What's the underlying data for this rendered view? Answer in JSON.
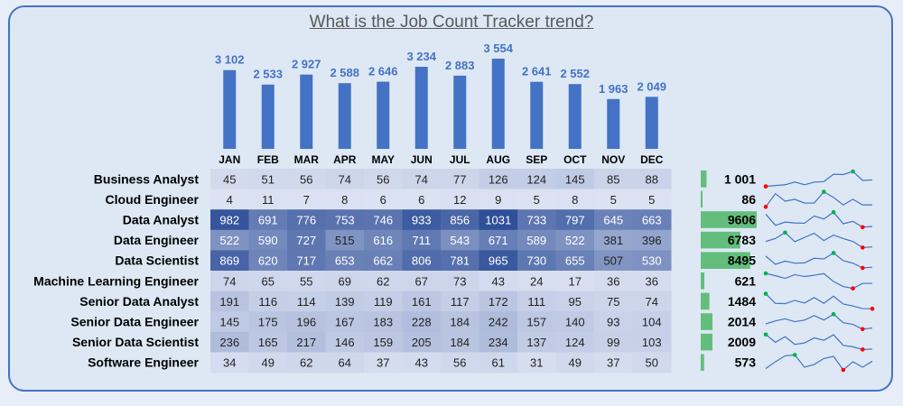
{
  "title": "What is the Job Count Tracker trend?",
  "chart_data": {
    "type": "bar",
    "categories": [
      "JAN",
      "FEB",
      "MAR",
      "APR",
      "MAY",
      "JUN",
      "JUL",
      "AUG",
      "SEP",
      "OCT",
      "NOV",
      "DEC"
    ],
    "values": [
      3102,
      2533,
      2927,
      2588,
      2646,
      3234,
      2883,
      3554,
      2641,
      2552,
      1963,
      2049
    ],
    "value_labels": [
      "3 102",
      "2 533",
      "2 927",
      "2 588",
      "2 646",
      "3 234",
      "2 883",
      "3 554",
      "2 641",
      "2 552",
      "1 963",
      "2 049"
    ],
    "title": "What is the Job Count Tracker trend?",
    "heatmap": {
      "rows": [
        {
          "label": "Business Analyst",
          "values": [
            45,
            51,
            56,
            74,
            56,
            74,
            77,
            126,
            124,
            145,
            85,
            88
          ],
          "total": "1 001",
          "total_value": 1001
        },
        {
          "label": "Cloud Engineer",
          "values": [
            4,
            11,
            7,
            8,
            6,
            6,
            12,
            9,
            5,
            8,
            5,
            5
          ],
          "total": "86",
          "total_value": 86
        },
        {
          "label": "Data Analyst",
          "values": [
            982,
            691,
            776,
            753,
            746,
            933,
            856,
            1031,
            733,
            797,
            645,
            663
          ],
          "total": "9606",
          "total_value": 9606
        },
        {
          "label": "Data Engineer",
          "values": [
            522,
            590,
            727,
            515,
            616,
            711,
            543,
            671,
            589,
            522,
            381,
            396
          ],
          "total": "6783",
          "total_value": 6783
        },
        {
          "label": "Data Scientist",
          "values": [
            869,
            620,
            717,
            653,
            662,
            806,
            781,
            965,
            730,
            655,
            507,
            530
          ],
          "total": "8495",
          "total_value": 8495
        },
        {
          "label": "Machine Learning Engineer",
          "values": [
            74,
            65,
            55,
            69,
            62,
            67,
            73,
            43,
            24,
            17,
            36,
            36
          ],
          "total": "621",
          "total_value": 621
        },
        {
          "label": "Senior Data Analyst",
          "values": [
            191,
            116,
            114,
            139,
            119,
            161,
            117,
            172,
            111,
            95,
            75,
            74
          ],
          "total": "1484",
          "total_value": 1484
        },
        {
          "label": "Senior Data Engineer",
          "values": [
            145,
            175,
            196,
            167,
            183,
            228,
            184,
            242,
            157,
            140,
            93,
            104
          ],
          "total": "2014",
          "total_value": 2014
        },
        {
          "label": "Senior Data Scientist",
          "values": [
            236,
            165,
            217,
            146,
            159,
            205,
            184,
            234,
            137,
            124,
            99,
            103
          ],
          "total": "2009",
          "total_value": 2009
        },
        {
          "label": "Software Engineer",
          "values": [
            34,
            49,
            62,
            64,
            37,
            43,
            56,
            61,
            31,
            49,
            37,
            50
          ],
          "total": "573",
          "total_value": 573
        }
      ]
    },
    "colors": {
      "bar": "#4472c4",
      "value_label": "#4472c4",
      "heat_low": "#dde3f3",
      "heat_high": "#2f4f99",
      "total_bar": "#63be7b",
      "sparkline": "#4472c4",
      "spark_high": "#00b050",
      "spark_low": "#ff0000"
    }
  }
}
